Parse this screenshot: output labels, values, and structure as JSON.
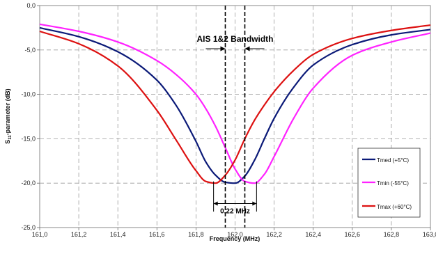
{
  "chart_data": {
    "type": "line",
    "title": "",
    "xlabel": "Frequency (MHz)",
    "ylabel_prefix": "S",
    "ylabel_sub": "11",
    "ylabel_suffix": "-parameter (dB)",
    "xlim": [
      161.0,
      163.0
    ],
    "ylim": [
      -25.0,
      0.0
    ],
    "xticks": [
      161.0,
      161.2,
      161.4,
      161.6,
      161.8,
      162.0,
      162.2,
      162.4,
      162.6,
      162.8,
      163.0
    ],
    "xtick_labels": [
      "161,0",
      "161,2",
      "161,4",
      "161,6",
      "161,8",
      "162,0",
      "162,2",
      "162,4",
      "162,6",
      "162,8",
      "163,0"
    ],
    "yticks": [
      0,
      -5,
      -10,
      -15,
      -20,
      -25
    ],
    "ytick_labels": [
      "0,0",
      "-5,0",
      "-10,0",
      "-15,0",
      "-20,0",
      "-25,0"
    ],
    "grid": true,
    "legend_position": "right",
    "x": [
      161.0,
      161.2,
      161.4,
      161.6,
      161.7,
      161.8,
      161.85,
      161.9,
      161.95,
      162.0,
      162.05,
      162.1,
      162.15,
      162.2,
      162.3,
      162.4,
      162.6,
      162.8,
      163.0
    ],
    "series": [
      {
        "name": "Tmed (+5°C)",
        "color": "#0b1a78",
        "values": [
          -2.5,
          -3.5,
          -5.2,
          -8.4,
          -11.3,
          -15.3,
          -17.6,
          -19.1,
          -19.9,
          -20.0,
          -19.2,
          -17.4,
          -15.0,
          -12.7,
          -9.2,
          -6.7,
          -4.4,
          -3.3,
          -2.7
        ]
      },
      {
        "name": "Tmin (-55°C)",
        "color": "#ff22ff",
        "values": [
          -2.1,
          -2.9,
          -4.1,
          -6.2,
          -7.8,
          -10.0,
          -11.6,
          -13.6,
          -16.0,
          -18.4,
          -19.8,
          -20.0,
          -19.0,
          -17.0,
          -12.7,
          -9.3,
          -5.6,
          -4.1,
          -3.1
        ]
      },
      {
        "name": "Tmax (+60°C)",
        "color": "#dd1111",
        "values": [
          -2.9,
          -4.3,
          -6.8,
          -11.8,
          -15.2,
          -18.6,
          -19.8,
          -20.0,
          -19.1,
          -17.4,
          -15.0,
          -12.9,
          -11.2,
          -9.7,
          -7.3,
          -5.5,
          -3.7,
          -2.8,
          -2.2
        ]
      }
    ],
    "annotations": {
      "bandwidth_label": "AIS 1&2 Bandwidth",
      "bandwidth_lines": [
        161.95,
        162.05
      ],
      "span_label": "0.22 MHz",
      "span_range": [
        161.89,
        162.11
      ],
      "span_level": -22.3
    }
  }
}
